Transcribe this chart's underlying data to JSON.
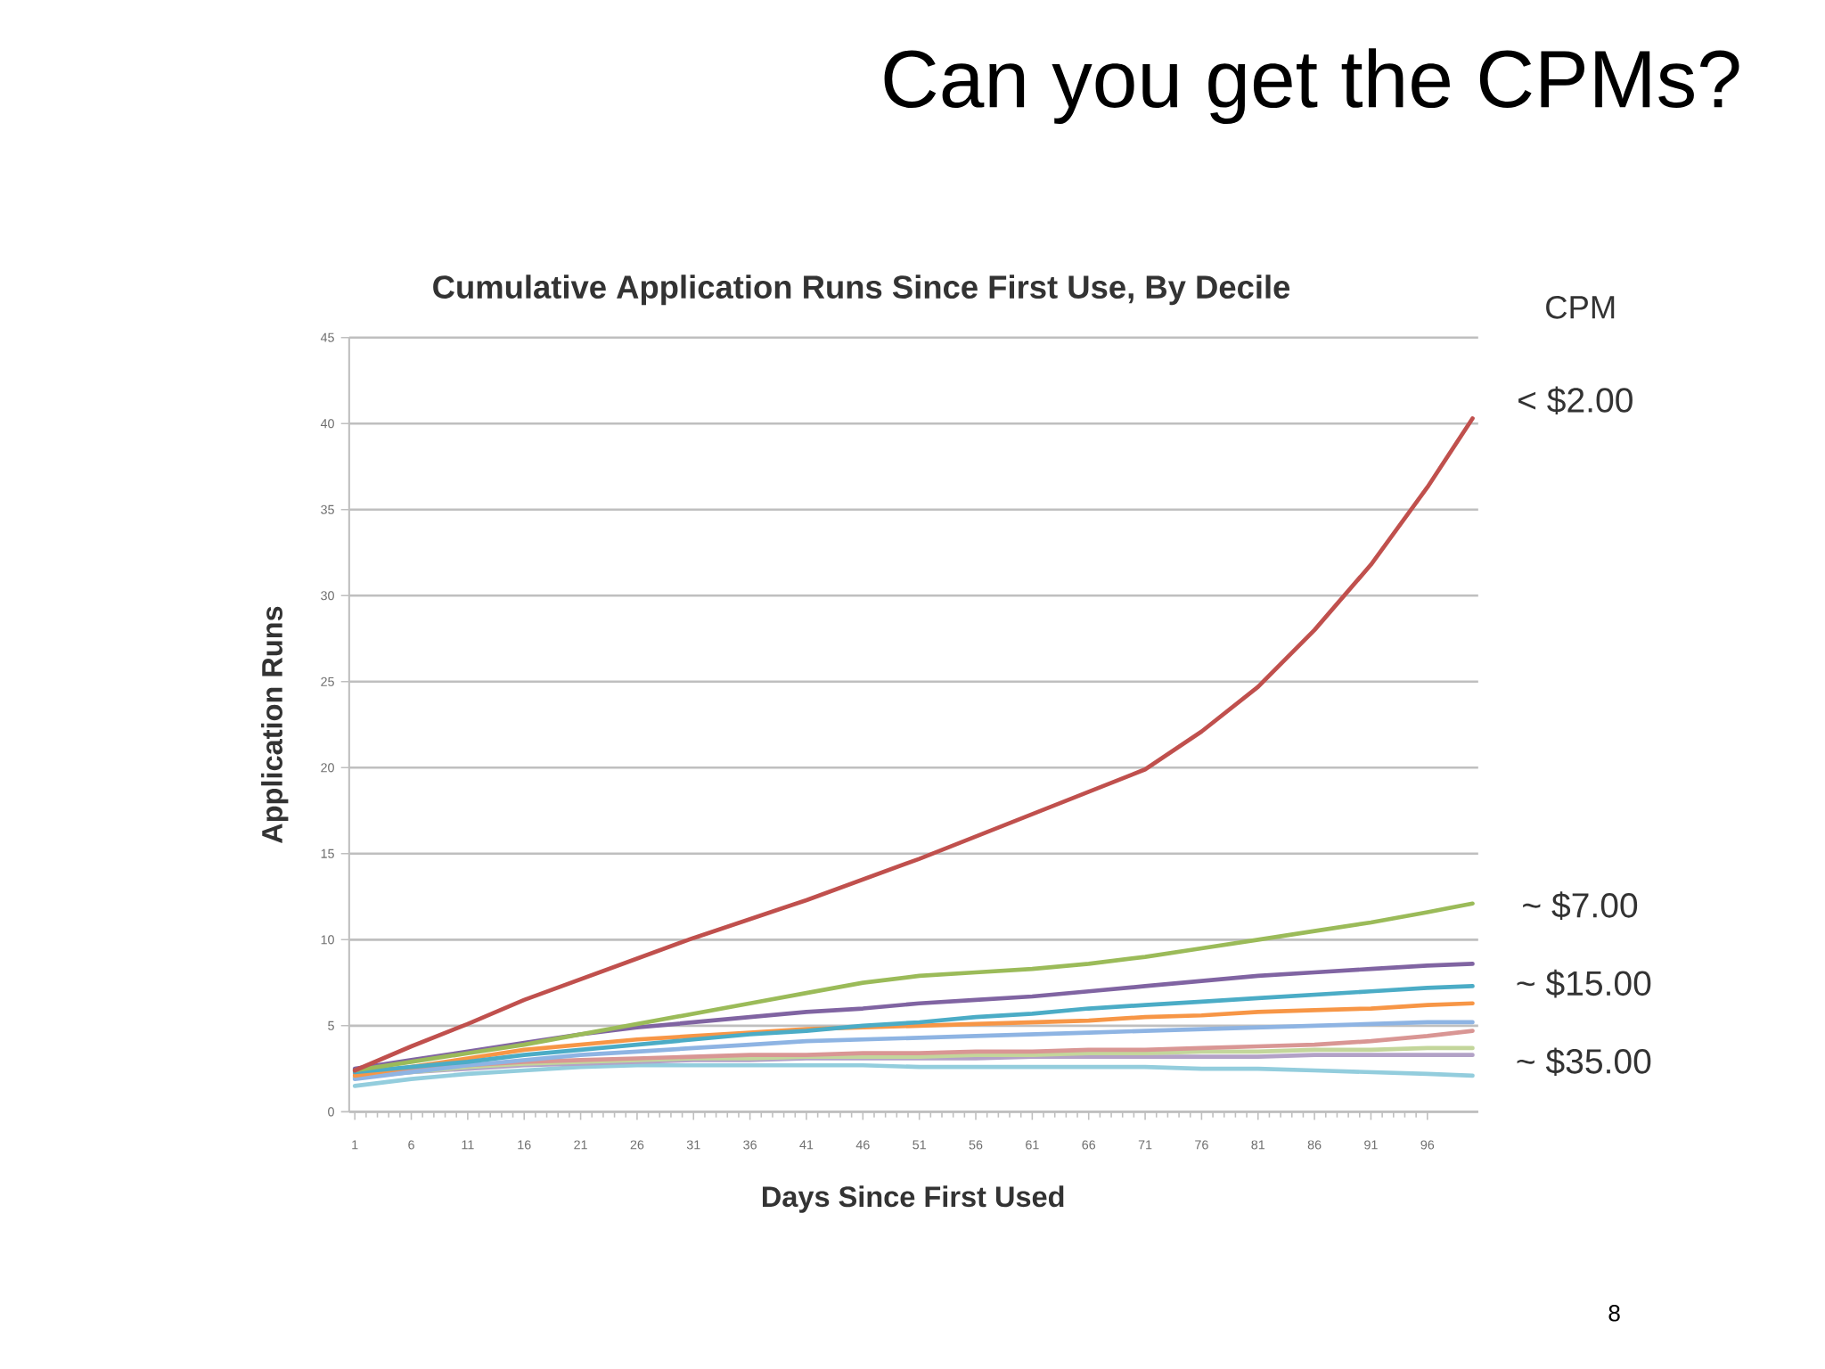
{
  "chart_data": {
    "type": "line",
    "title": "Can you get the CPMs?",
    "subtitle": "Cumulative Application Runs Since First Use, By Decile",
    "xlabel": "Days Since First Used",
    "ylabel": "Application Runs",
    "x": [
      1,
      6,
      11,
      16,
      21,
      26,
      31,
      36,
      41,
      46,
      51,
      56,
      61,
      66,
      71,
      76,
      81,
      86,
      91,
      96,
      100
    ],
    "xlim": [
      0.5,
      100.5
    ],
    "xticks": [
      1,
      6,
      11,
      16,
      21,
      26,
      31,
      36,
      41,
      46,
      51,
      56,
      61,
      66,
      71,
      76,
      81,
      86,
      91,
      96
    ],
    "ylim": [
      0,
      45
    ],
    "yticks": [
      0,
      5,
      10,
      15,
      20,
      25,
      30,
      35,
      40,
      45
    ],
    "grid": "y",
    "series": [
      {
        "color": "#93cddd",
        "values": [
          1.5,
          1.9,
          2.2,
          2.4,
          2.6,
          2.7,
          2.7,
          2.7,
          2.7,
          2.7,
          2.6,
          2.6,
          2.6,
          2.6,
          2.6,
          2.5,
          2.5,
          2.4,
          2.3,
          2.2,
          2.1
        ]
      },
      {
        "color": "#b3a2c7",
        "values": [
          2.0,
          2.3,
          2.5,
          2.7,
          2.8,
          2.9,
          3.0,
          3.0,
          3.1,
          3.1,
          3.1,
          3.1,
          3.2,
          3.2,
          3.2,
          3.2,
          3.2,
          3.3,
          3.3,
          3.3,
          3.3
        ]
      },
      {
        "color": "#c3d69b",
        "values": [
          2.0,
          2.3,
          2.6,
          2.8,
          2.9,
          3.0,
          3.1,
          3.1,
          3.2,
          3.2,
          3.2,
          3.3,
          3.3,
          3.4,
          3.4,
          3.5,
          3.5,
          3.6,
          3.6,
          3.7,
          3.7
        ]
      },
      {
        "color": "#d99694",
        "values": [
          2.2,
          2.5,
          2.7,
          2.9,
          3.0,
          3.1,
          3.2,
          3.3,
          3.3,
          3.4,
          3.4,
          3.5,
          3.5,
          3.6,
          3.6,
          3.7,
          3.8,
          3.9,
          4.1,
          4.4,
          4.7
        ]
      },
      {
        "color": "#8eb4e3",
        "values": [
          1.9,
          2.3,
          2.7,
          3.0,
          3.3,
          3.5,
          3.7,
          3.9,
          4.1,
          4.2,
          4.3,
          4.4,
          4.5,
          4.6,
          4.7,
          4.8,
          4.9,
          5.0,
          5.1,
          5.2,
          5.2
        ]
      },
      {
        "color": "#f79646",
        "values": [
          2.1,
          2.6,
          3.1,
          3.6,
          3.9,
          4.2,
          4.4,
          4.6,
          4.8,
          4.9,
          5.0,
          5.1,
          5.2,
          5.3,
          5.5,
          5.6,
          5.8,
          5.9,
          6.0,
          6.2,
          6.3
        ]
      },
      {
        "color": "#4bacc6",
        "values": [
          2.3,
          2.6,
          2.9,
          3.3,
          3.6,
          3.9,
          4.2,
          4.5,
          4.7,
          5.0,
          5.2,
          5.5,
          5.7,
          6.0,
          6.2,
          6.4,
          6.6,
          6.8,
          7.0,
          7.2,
          7.3
        ]
      },
      {
        "color": "#8064a2",
        "values": [
          2.5,
          3.0,
          3.5,
          4.0,
          4.5,
          4.9,
          5.2,
          5.5,
          5.8,
          6.0,
          6.3,
          6.5,
          6.7,
          7.0,
          7.3,
          7.6,
          7.9,
          8.1,
          8.3,
          8.5,
          8.6
        ]
      },
      {
        "color": "#9bbb59",
        "values": [
          2.4,
          2.9,
          3.4,
          3.9,
          4.5,
          5.1,
          5.7,
          6.3,
          6.9,
          7.5,
          7.9,
          8.1,
          8.3,
          8.6,
          9.0,
          9.5,
          10.0,
          10.5,
          11.0,
          11.6,
          12.1
        ]
      },
      {
        "color": "#c0504d",
        "values": [
          2.4,
          3.8,
          5.1,
          6.5,
          7.7,
          8.9,
          10.1,
          11.2,
          12.3,
          13.5,
          14.7,
          16.0,
          17.3,
          18.6,
          19.9,
          22.1,
          24.7,
          28.0,
          31.8,
          36.3,
          40.3
        ]
      }
    ],
    "annotations": [
      "CPM",
      "< $2.00",
      "~ $7.00",
      "~ $15.00",
      "~ $35.00",
      "8"
    ]
  }
}
